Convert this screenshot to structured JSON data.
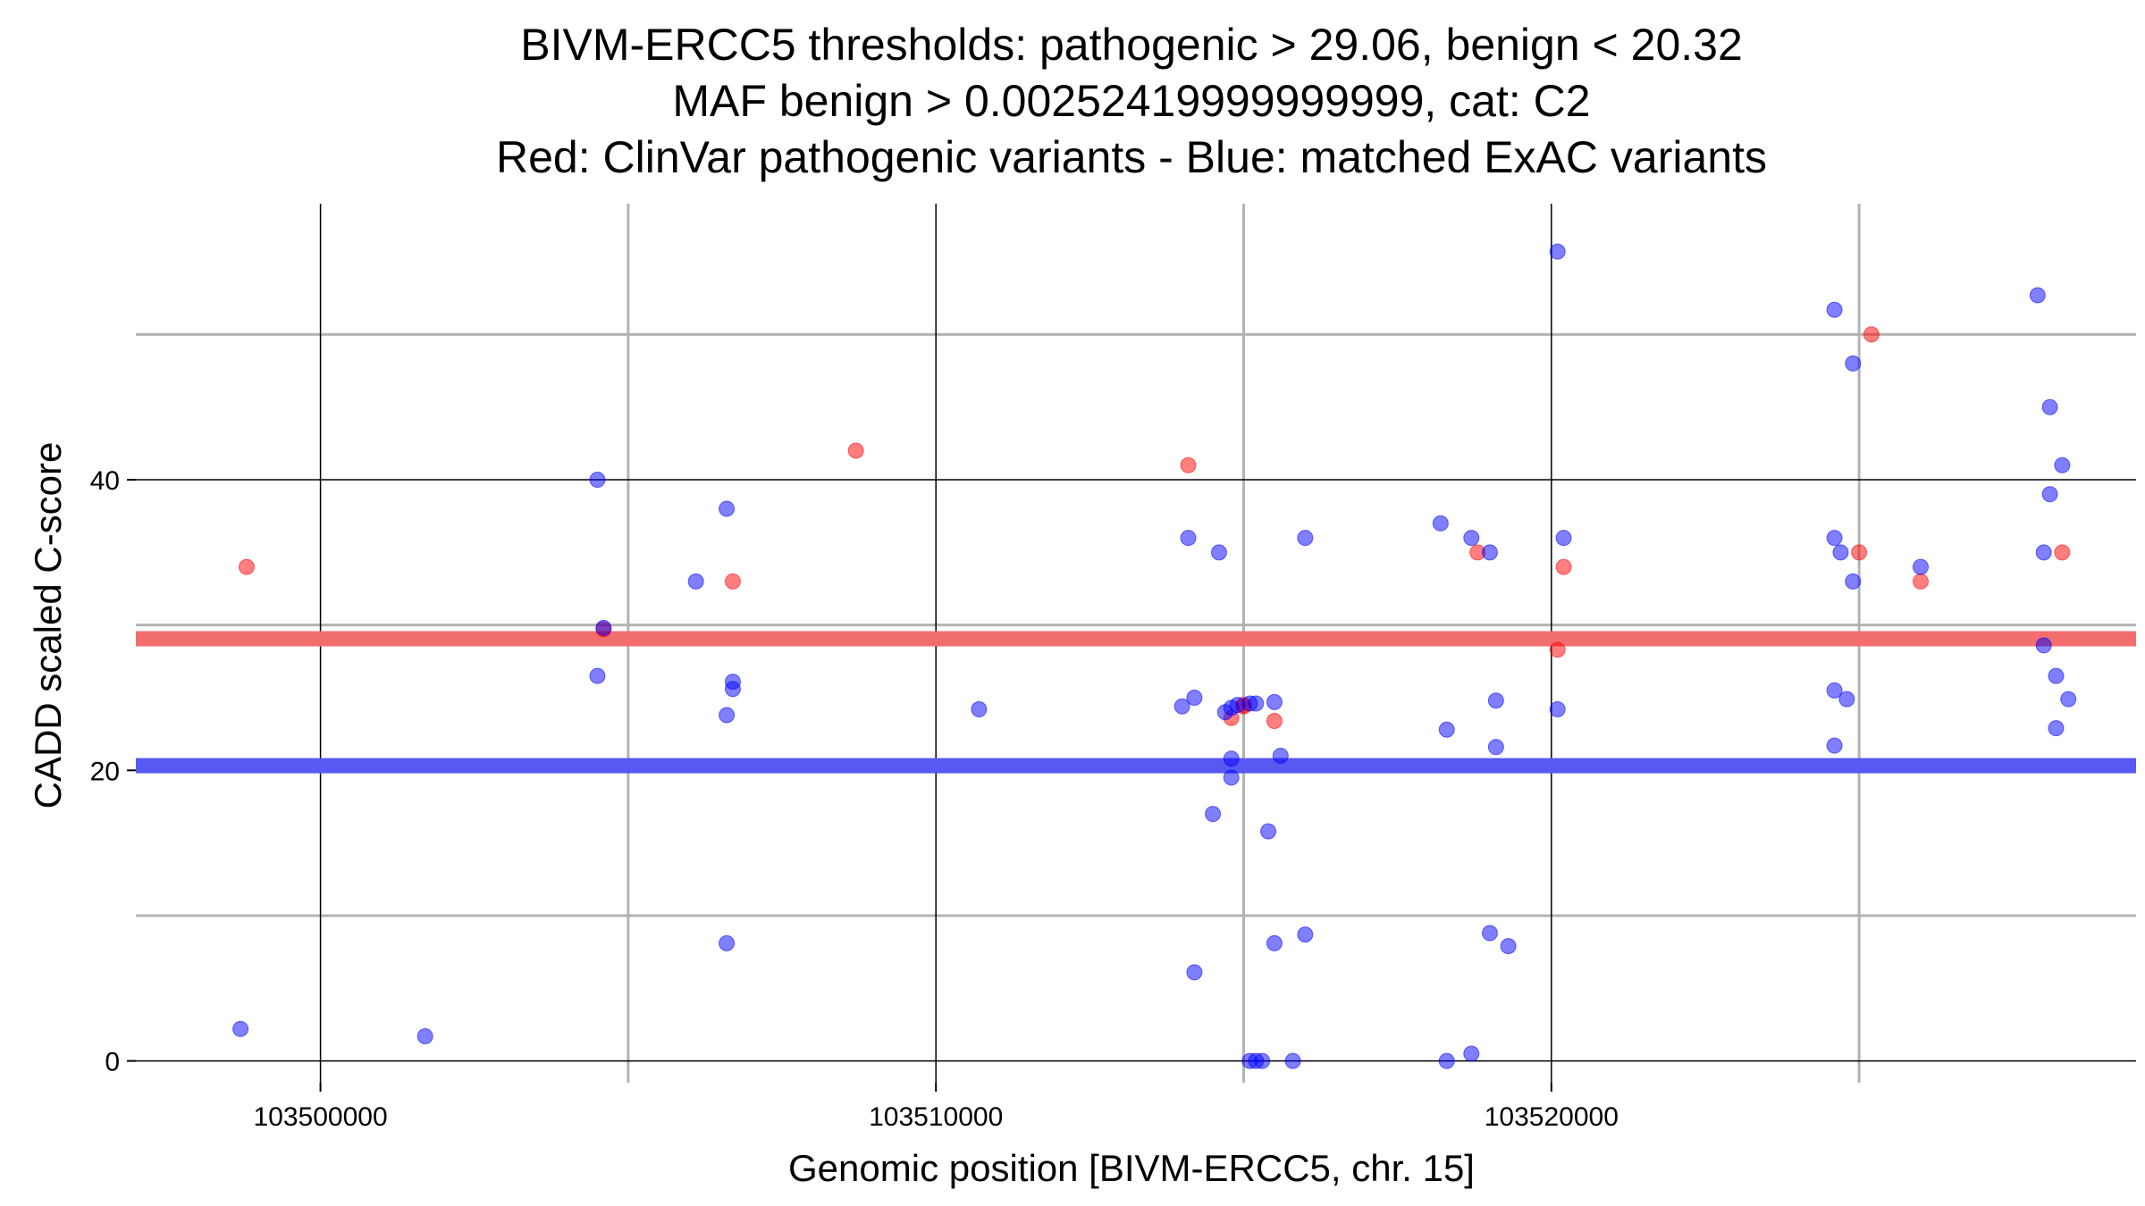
{
  "chart_data": {
    "type": "scatter",
    "title_lines": [
      "BIVM-ERCC5 thresholds: pathogenic > 29.06, benign < 20.32",
      "MAF benign > 0.00252419999999999, cat: C2",
      "Red: ClinVar pathogenic variants - Blue: matched ExAC variants"
    ],
    "xlabel": "Genomic position [BIVM-ERCC5, chr. 15]",
    "ylabel": "CADD scaled C-score",
    "xlim": [
      103497000,
      103529500
    ],
    "ylim": [
      -1.5,
      59
    ],
    "x_major_ticks": [
      103500000,
      103510000,
      103520000
    ],
    "x_major_tick_labels": [
      "103500000",
      "103510000",
      "103520000"
    ],
    "x_minor_grid": [
      103505000,
      103515000,
      103525000
    ],
    "y_major_ticks": [
      0,
      20,
      40
    ],
    "y_major_tick_labels": [
      "0",
      "20",
      "40"
    ],
    "y_minor_grid": [
      10,
      30,
      50
    ],
    "thresholds": [
      {
        "name": "pathogenic",
        "value": 29.06,
        "color": "#f26d6d"
      },
      {
        "name": "benign",
        "value": 20.32,
        "color": "#5858f2"
      }
    ],
    "colors": {
      "pathogenic": "#ff0000",
      "benign": "#0000ff"
    },
    "series": [
      {
        "name": "ClinVar pathogenic variants",
        "color": "#ff0000",
        "points": [
          [
            103498800,
            34
          ],
          [
            103504600,
            29.7
          ],
          [
            103506700,
            33
          ],
          [
            103508700,
            42
          ],
          [
            103514100,
            41
          ],
          [
            103514800,
            23.6
          ],
          [
            103515000,
            24.4
          ],
          [
            103515000,
            24.5
          ],
          [
            103515500,
            23.4
          ],
          [
            103518800,
            35
          ],
          [
            103520100,
            28.3
          ],
          [
            103520200,
            34
          ],
          [
            103525000,
            35
          ],
          [
            103525200,
            50
          ],
          [
            103526000,
            33
          ],
          [
            103528300,
            35
          ]
        ]
      },
      {
        "name": "matched ExAC variants",
        "color": "#0000ff",
        "points": [
          [
            103498700,
            2.2
          ],
          [
            103501700,
            1.7
          ],
          [
            103504500,
            40
          ],
          [
            103504500,
            26.5
          ],
          [
            103504600,
            29.8
          ],
          [
            103506100,
            33
          ],
          [
            103506600,
            38
          ],
          [
            103506600,
            23.8
          ],
          [
            103506700,
            26.1
          ],
          [
            103506700,
            25.6
          ],
          [
            103506600,
            8.1
          ],
          [
            103510700,
            24.2
          ],
          [
            103514000,
            24.4
          ],
          [
            103514100,
            36
          ],
          [
            103514200,
            25
          ],
          [
            103514600,
            35
          ],
          [
            103514700,
            24
          ],
          [
            103514800,
            24.3
          ],
          [
            103514900,
            24.5
          ],
          [
            103515100,
            24.6
          ],
          [
            103515200,
            24.6
          ],
          [
            103514800,
            20.8
          ],
          [
            103514800,
            19.5
          ],
          [
            103514500,
            17
          ],
          [
            103515400,
            15.8
          ],
          [
            103515500,
            24.7
          ],
          [
            103515600,
            21
          ],
          [
            103516000,
            36
          ],
          [
            103516000,
            8.7
          ],
          [
            103515500,
            8.1
          ],
          [
            103514200,
            6.1
          ],
          [
            103515100,
            0
          ],
          [
            103515200,
            0
          ],
          [
            103515300,
            0
          ],
          [
            103515800,
            0
          ],
          [
            103518200,
            37
          ],
          [
            103518300,
            22.8
          ],
          [
            103518300,
            0
          ],
          [
            103518700,
            36
          ],
          [
            103518700,
            0.5
          ],
          [
            103519000,
            35
          ],
          [
            103519000,
            8.8
          ],
          [
            103519100,
            24.8
          ],
          [
            103519100,
            21.6
          ],
          [
            103519300,
            7.9
          ],
          [
            103520100,
            55.7
          ],
          [
            103520200,
            36
          ],
          [
            103520100,
            24.2
          ],
          [
            103524600,
            51.7
          ],
          [
            103524600,
            36
          ],
          [
            103524600,
            25.5
          ],
          [
            103524600,
            21.7
          ],
          [
            103524700,
            35
          ],
          [
            103524800,
            24.9
          ],
          [
            103524900,
            33
          ],
          [
            103524900,
            48
          ],
          [
            103526000,
            34
          ],
          [
            103527900,
            52.7
          ],
          [
            103528000,
            35
          ],
          [
            103528000,
            28.6
          ],
          [
            103528100,
            45
          ],
          [
            103528100,
            39
          ],
          [
            103528200,
            22.9
          ],
          [
            103528200,
            26.5
          ],
          [
            103528300,
            41
          ],
          [
            103528400,
            24.9
          ]
        ]
      }
    ]
  }
}
